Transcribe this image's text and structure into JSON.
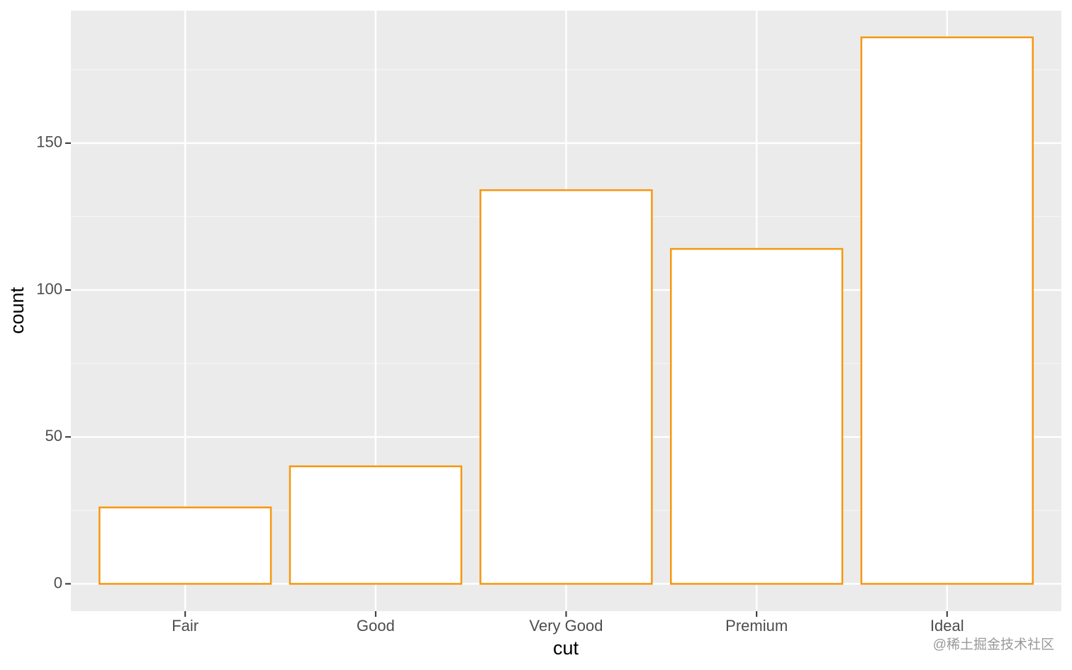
{
  "chart_data": {
    "type": "bar",
    "x_label": "cut",
    "y_label": "count",
    "categories": [
      "Fair",
      "Good",
      "Very Good",
      "Premium",
      "Ideal"
    ],
    "values": [
      26,
      40,
      134,
      114,
      186
    ],
    "color": "#f7970f",
    "fill": "#ffffff",
    "ylim": [
      -9.3,
      195.1
    ],
    "yticks": [
      0,
      50,
      100,
      150
    ],
    "grid": true,
    "watermark": "@稀土掘金技术社区"
  }
}
